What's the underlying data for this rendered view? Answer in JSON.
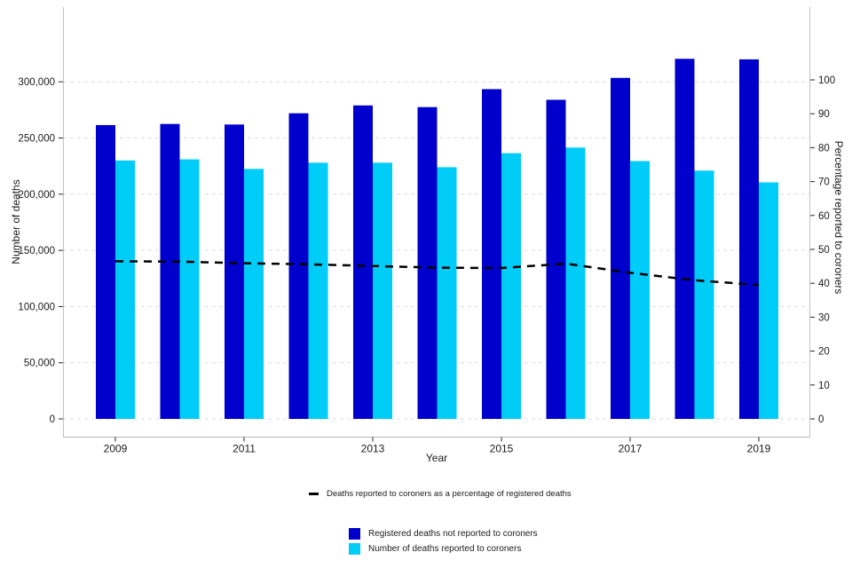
{
  "chart_data": {
    "type": "bar",
    "title": "",
    "xlabel": "Year",
    "years": [
      2009,
      2010,
      2011,
      2012,
      2013,
      2014,
      2015,
      2016,
      2017,
      2018,
      2019
    ],
    "x_axis_labeled_years": [
      2009,
      2011,
      2013,
      2015,
      2017,
      2019
    ],
    "left_axis": {
      "label": "Number of deaths",
      "tick_values": [
        0,
        50000,
        100000,
        150000,
        200000,
        250000,
        300000
      ],
      "tick_labels": [
        "0",
        "50,000",
        "100,000",
        "150,000",
        "200,000",
        "250,000",
        "300,000"
      ],
      "range": [
        0,
        366000
      ]
    },
    "right_axis": {
      "label": "Percentage reported to coroners",
      "tick_values": [
        0,
        10,
        20,
        30,
        40,
        50,
        60,
        70,
        80,
        90,
        100
      ],
      "tick_labels": [
        "0",
        "10",
        "20",
        "30",
        "40",
        "50",
        "60",
        "70",
        "80",
        "90",
        "100"
      ],
      "range": [
        0,
        121
      ]
    },
    "series": [
      {
        "name": "Registered deaths not reported to coroners",
        "type": "bar",
        "axis": "left",
        "color": "#0000CC",
        "values": [
          261500,
          262500,
          262000,
          272000,
          279000,
          277500,
          293500,
          284000,
          303500,
          320500,
          320000
        ]
      },
      {
        "name": "Number of deaths reported to coroners",
        "type": "bar",
        "axis": "left",
        "color": "#00CCF8",
        "values": [
          230000,
          231000,
          222500,
          228000,
          228000,
          224000,
          236500,
          241500,
          229500,
          221000,
          210500
        ]
      },
      {
        "name": "Deaths reported to coroners as a percentage of registered deaths",
        "type": "line",
        "line_style": "dashed",
        "axis": "right",
        "color": "#000000",
        "values": [
          46.5,
          46.4,
          45.9,
          45.6,
          45.1,
          44.6,
          44.5,
          45.8,
          43.1,
          40.9,
          39.5
        ]
      }
    ],
    "grid": {
      "horizontal": true,
      "style": "dashed",
      "color": "#DCDCDC"
    },
    "legend_position": "bottom"
  }
}
